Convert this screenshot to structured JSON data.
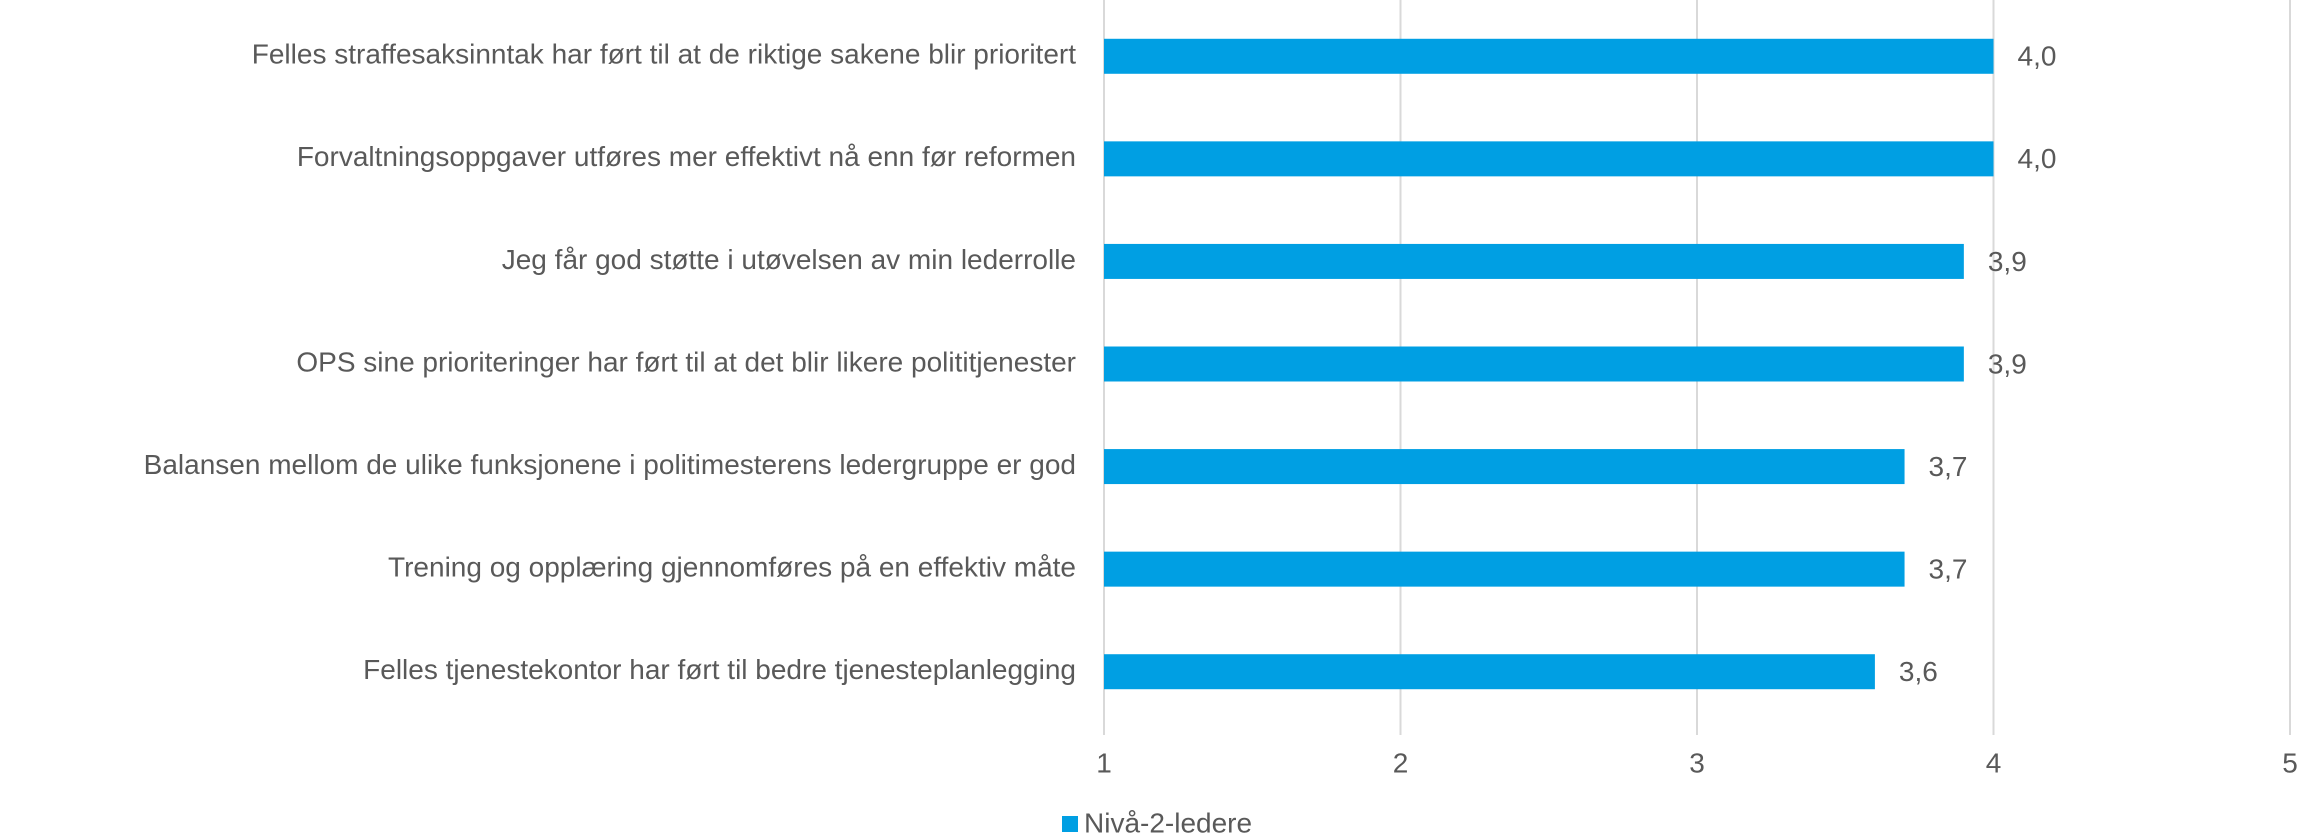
{
  "chart_data": {
    "type": "hbar",
    "categories": [
      "Felles straffesaksinntak har ført til at de riktige sakene blir prioritert",
      "Forvaltningsoppgaver utføres mer effektivt nå enn før reformen",
      "Jeg får god støtte i utøvelsen av min lederrolle",
      "OPS sine prioriteringer har ført til at det blir likere polititjenester",
      "Balansen mellom de ulike funksjonene i politimesterens ledergruppe er god",
      "Trening og opplæring gjennomføres på en effektiv måte",
      "Felles tjenestekontor har ført til bedre tjenesteplanlegging"
    ],
    "series": [
      {
        "name": "Nivå-2-ledere",
        "color": "#009fe3",
        "values": [
          4.0,
          4.0,
          3.9,
          3.9,
          3.7,
          3.7,
          3.6
        ],
        "value_labels": [
          "4,0",
          "4,0",
          "3,9",
          "3,9",
          "3,7",
          "3,7",
          "3,6"
        ]
      }
    ],
    "xlim": [
      1,
      5
    ],
    "xticks": [
      1,
      2,
      3,
      4,
      5
    ],
    "grid": true,
    "legend": "bottom"
  }
}
